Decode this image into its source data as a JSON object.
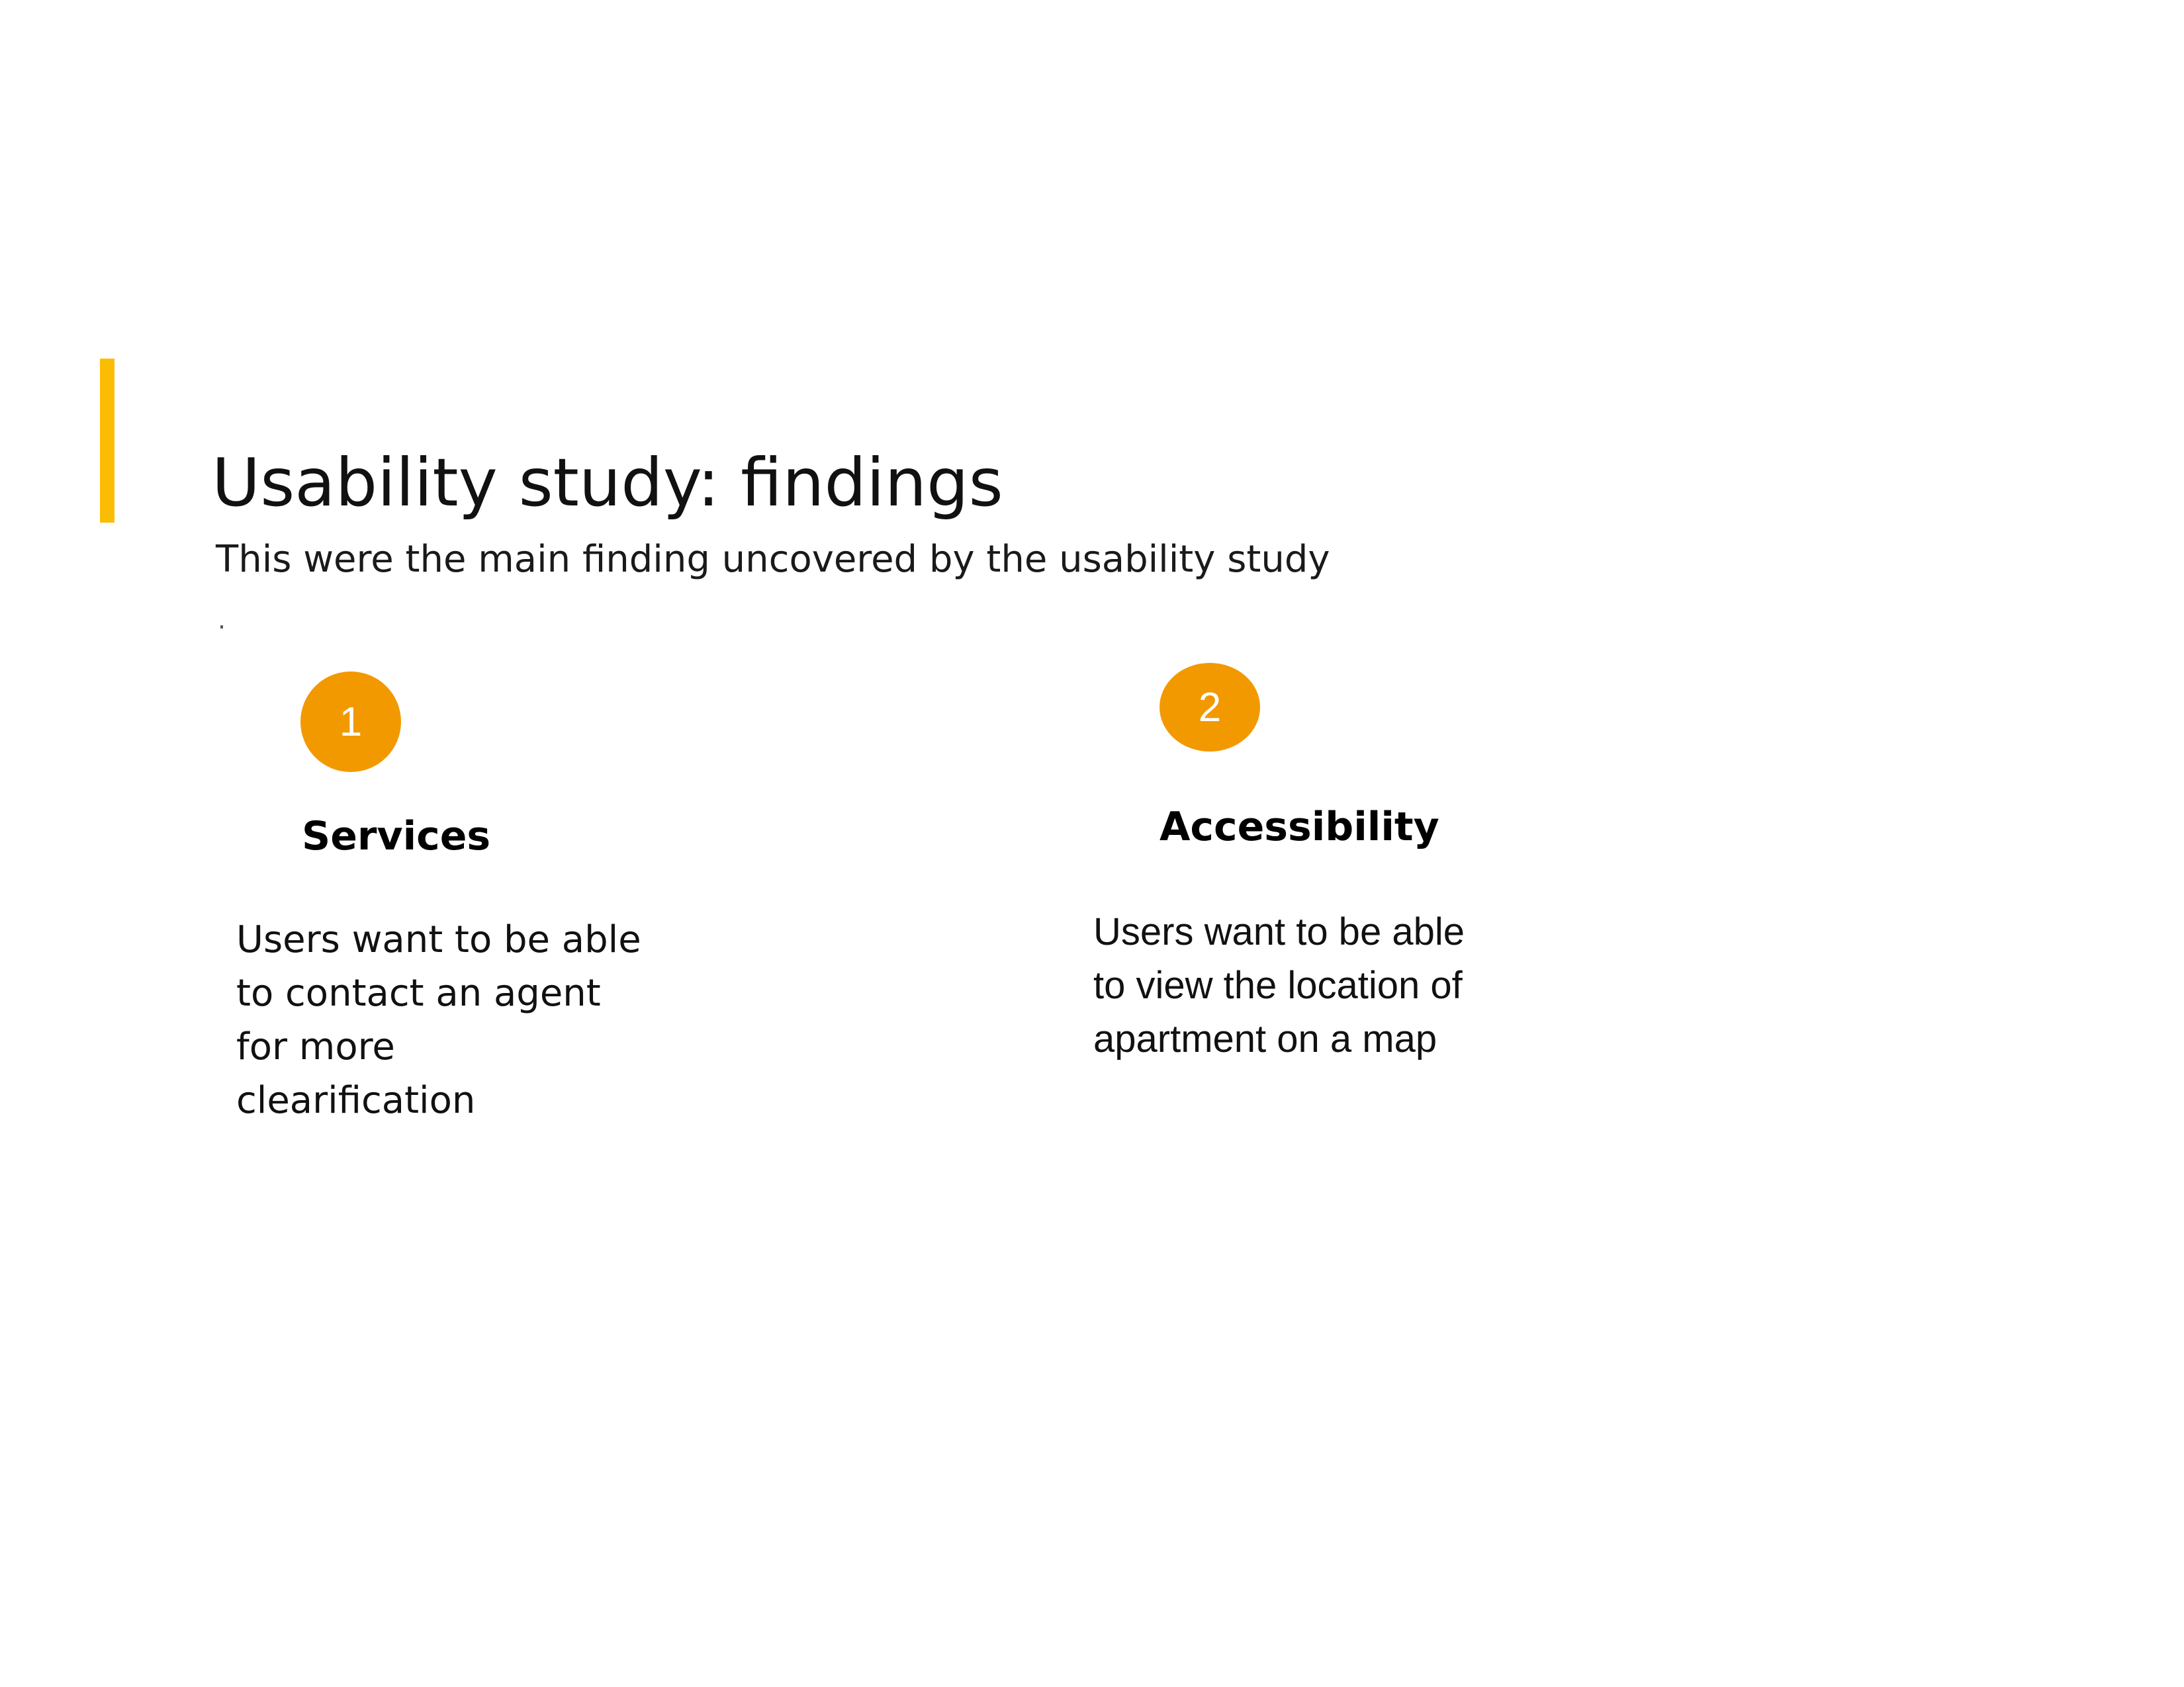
{
  "slide": {
    "title": "Usability study: findings",
    "subtitle": "This were the main finding uncovered by the usability study",
    "stray_mark": ".",
    "accent_color": "#FBBC04",
    "badge_color": "#F29900"
  },
  "findings": [
    {
      "number": "1",
      "heading": "Services",
      "text": "Users want to be able\nto contact an agent\nfor more\nclearification"
    },
    {
      "number": "2",
      "heading": "Accessibility",
      "text": "Users want to be able\nto view the location of\napartment on a map"
    }
  ]
}
